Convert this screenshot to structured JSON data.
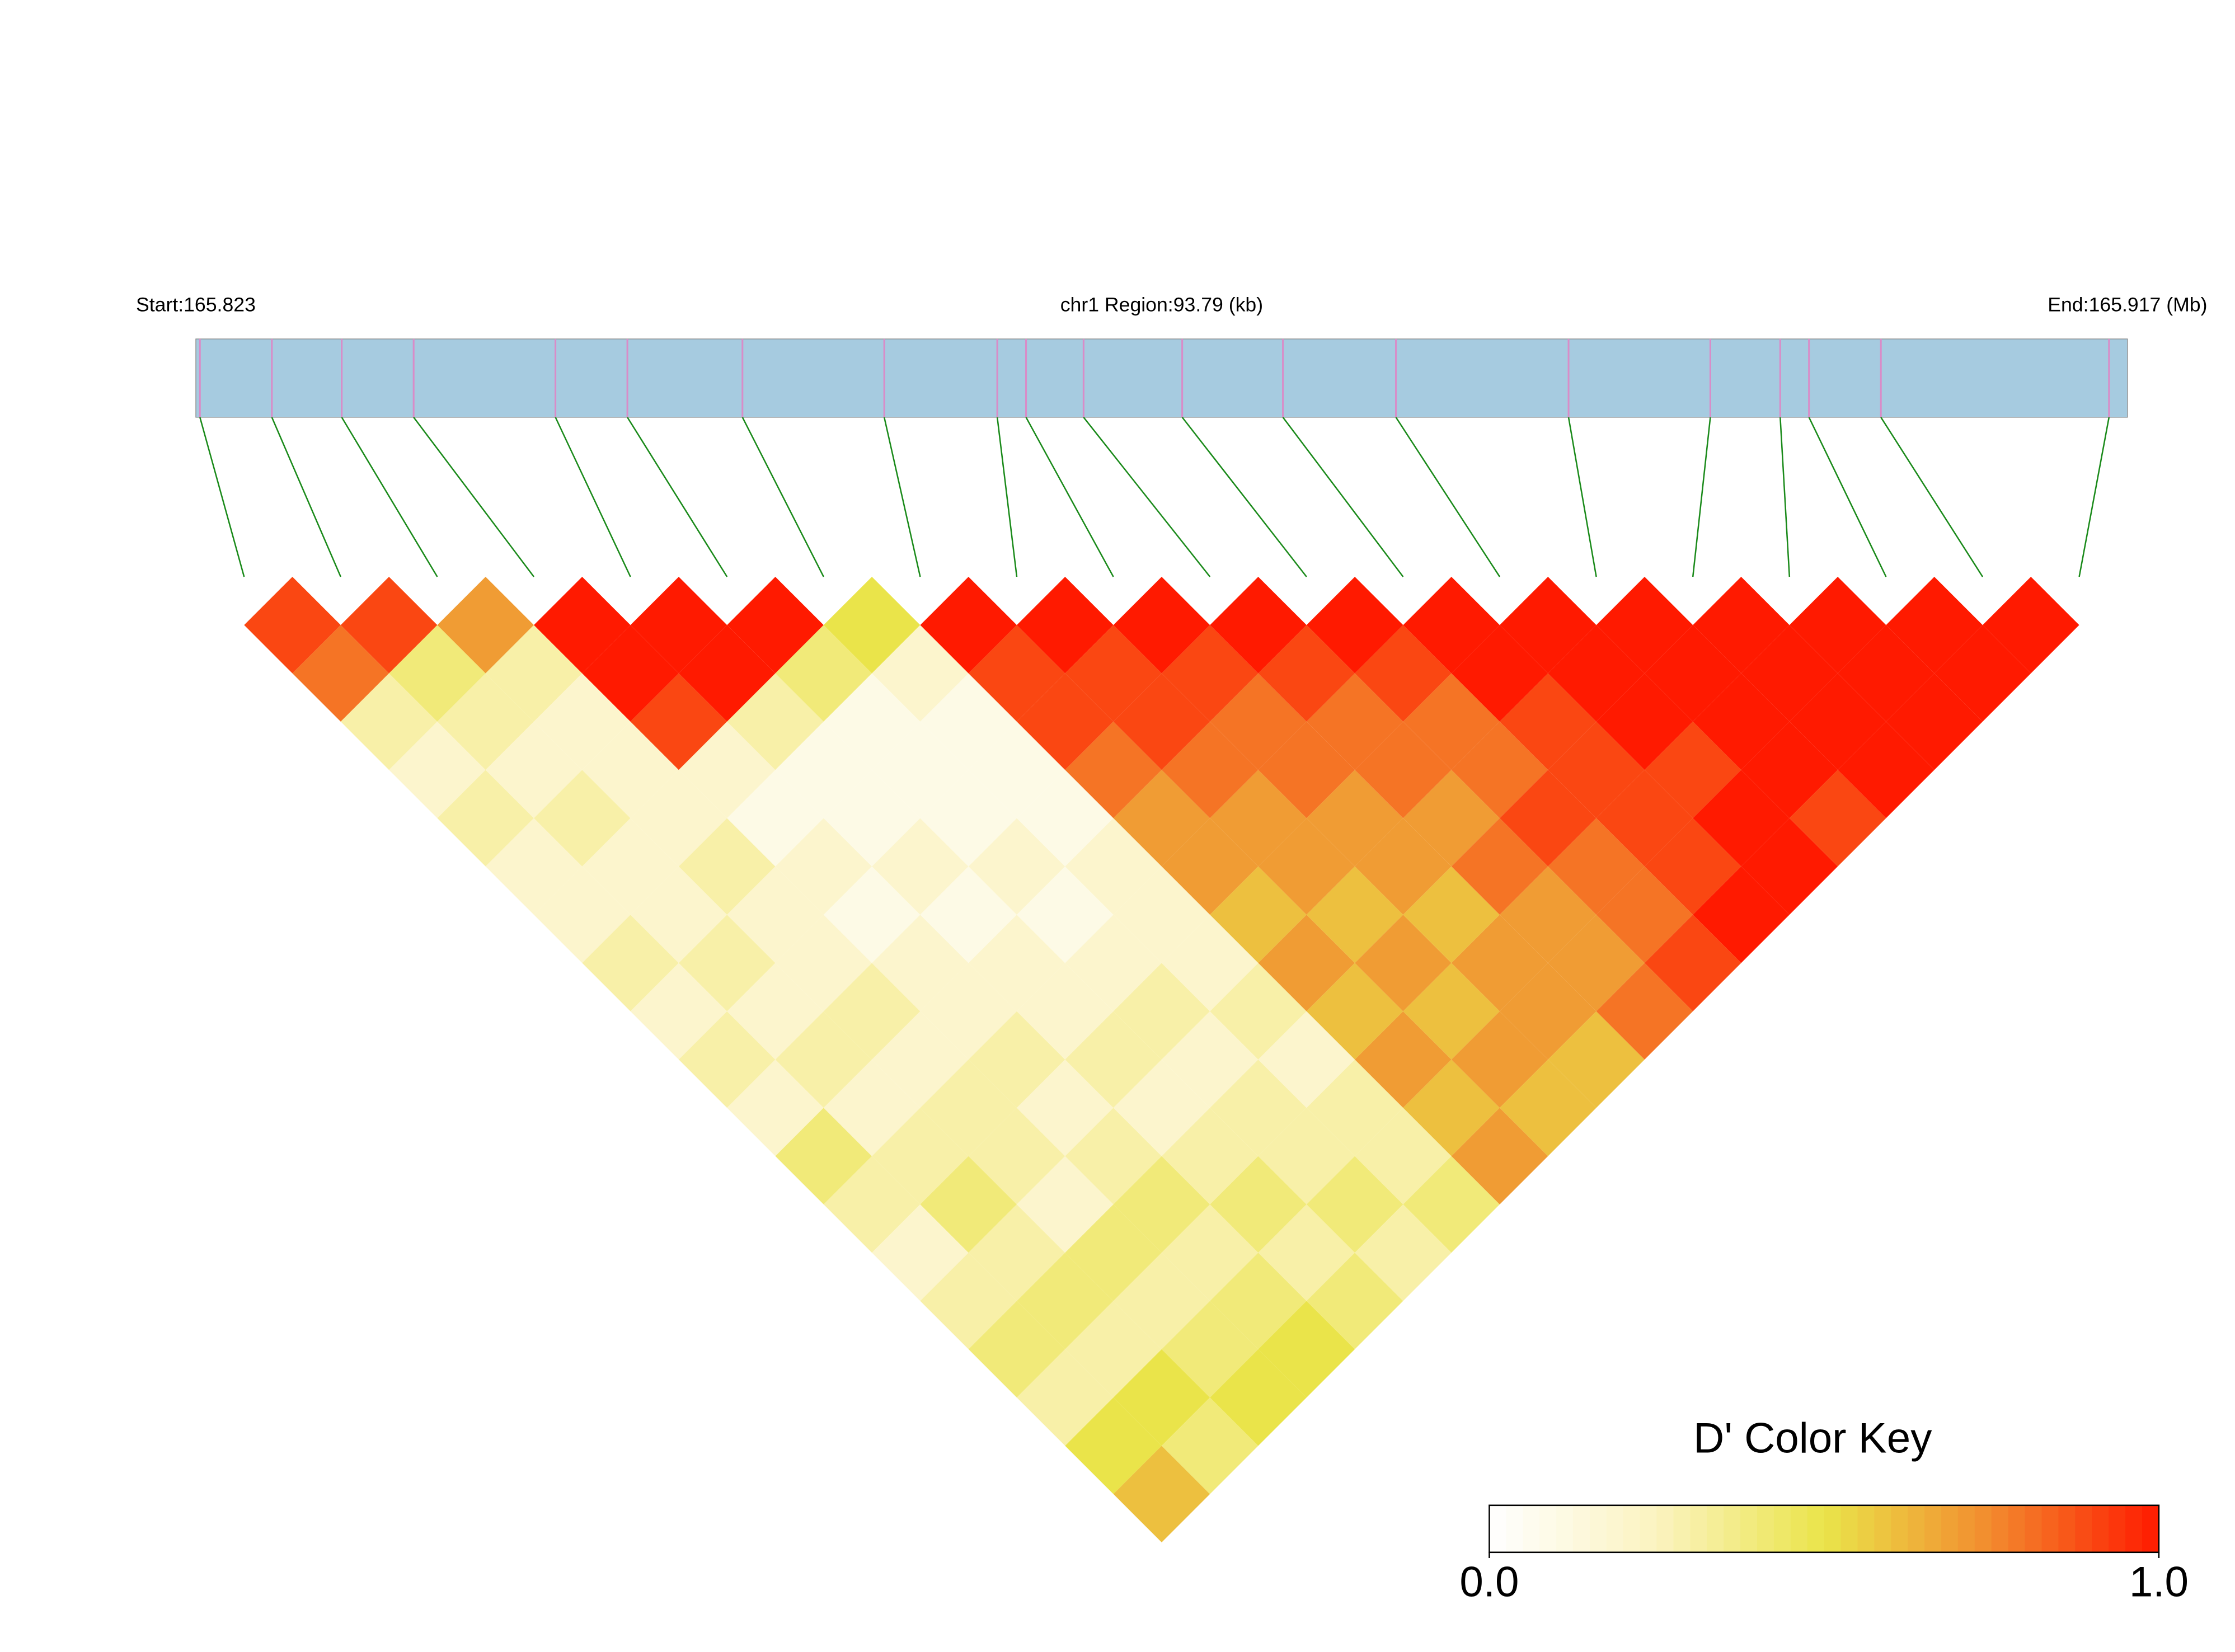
{
  "chart_data": {
    "type": "ld-heatmap",
    "start_label": "Start:165.823",
    "region_label": "chr1 Region:93.79 (kb)",
    "end_label": "End:165.917 (Mb)",
    "xlim": [
      165.823,
      165.917
    ],
    "snp_positions": [
      165.8232,
      165.8267,
      165.8301,
      165.8336,
      165.8405,
      165.844,
      165.8496,
      165.8565,
      165.862,
      165.8634,
      165.8662,
      165.871,
      165.8759,
      165.8814,
      165.8898,
      165.8967,
      165.9001,
      165.9015,
      165.905,
      165.9161
    ],
    "track_color": "#a6cbe0",
    "snp_tick_color": "#d98cc8",
    "connector_color": "#1a8a1a",
    "ld_matrix": [
      [
        0.9,
        0.8,
        0.3,
        0.2,
        0.3,
        0.2,
        0.2,
        0.3,
        0.2,
        0.3,
        0.2,
        0.4,
        0.3,
        0.2,
        0.3,
        0.4,
        0.3,
        0.5,
        0.6
      ],
      [
        0.9,
        0.4,
        0.3,
        0.2,
        0.3,
        0.2,
        0.2,
        0.3,
        0.2,
        0.3,
        0.2,
        0.3,
        0.4,
        0.3,
        0.4,
        0.3,
        0.5,
        0.4
      ],
      [
        0.7,
        0.3,
        0.2,
        0.2,
        0.2,
        0.3,
        0.2,
        0.2,
        0.3,
        0.2,
        0.3,
        0.3,
        0.2,
        0.4,
        0.3,
        0.4,
        0.5
      ],
      [
        1,
        1,
        0.9,
        0.2,
        0.1,
        0.2,
        0.1,
        0.2,
        0.2,
        0.3,
        0.2,
        0.3,
        0.4,
        0.3,
        0.4,
        0.5
      ],
      [
        1,
        1,
        0.3,
        0.1,
        0.1,
        0.2,
        0.1,
        0.2,
        0.2,
        0.3,
        0.2,
        0.3,
        0.4,
        0.3,
        0.4
      ],
      [
        1,
        0.4,
        0.1,
        0.1,
        0.1,
        0.2,
        0.1,
        0.2,
        0.3,
        0.2,
        0.3,
        0.3,
        0.4,
        0.3
      ],
      [
        0.5,
        0.2,
        0.1,
        0.1,
        0.1,
        0.2,
        0.2,
        0.2,
        0.3,
        0.2,
        0.3,
        0.3,
        0.4
      ],
      [
        1,
        0.9,
        0.9,
        0.8,
        0.7,
        0.7,
        0.6,
        0.7,
        0.6,
        0.7,
        0.6,
        0.7
      ],
      [
        1,
        0.9,
        0.9,
        0.8,
        0.7,
        0.7,
        0.6,
        0.7,
        0.6,
        0.7,
        0.6
      ],
      [
        1,
        0.9,
        0.8,
        0.8,
        0.7,
        0.7,
        0.6,
        0.7,
        0.7,
        0.6
      ],
      [
        1,
        0.9,
        0.8,
        0.8,
        0.7,
        0.8,
        0.7,
        0.7,
        0.8
      ],
      [
        1,
        0.9,
        0.8,
        0.8,
        0.9,
        0.8,
        0.8,
        0.9
      ],
      [
        1,
        1,
        0.9,
        0.9,
        0.9,
        0.9,
        1
      ],
      [
        1,
        1,
        1,
        0.9,
        1,
        1
      ],
      [
        1,
        1,
        1,
        1,
        0.9
      ],
      [
        1,
        1,
        1,
        1
      ],
      [
        1,
        1,
        1
      ],
      [
        1,
        1
      ],
      [
        1
      ]
    ],
    "colors": [
      "#ffffff",
      "#fbf3c0",
      "#eae44a",
      "#f28a2e",
      "#ff1a00"
    ],
    "key_title": "D' Color Key",
    "key_ticks": [
      {
        "value": 0,
        "label": "0.0"
      },
      {
        "value": 1,
        "label": "1.0"
      }
    ]
  }
}
